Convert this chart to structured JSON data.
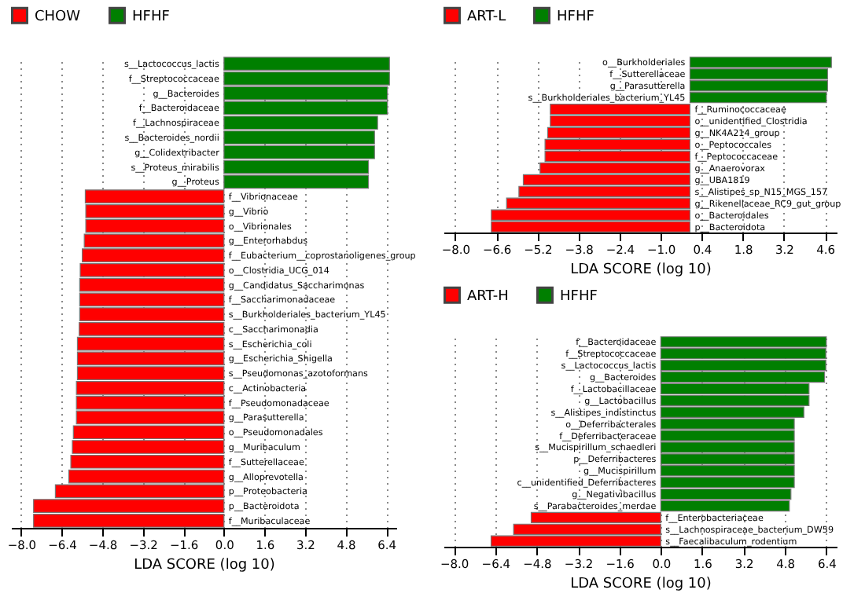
{
  "chart_data": [
    {
      "type": "bar",
      "orientation": "horizontal",
      "xlabel": "LDA SCORE (log 10)",
      "legend": "top left",
      "grid": "x",
      "categories": [
        "s__Lactococcus_lactis",
        "f__Streptococcaceae",
        "g__Bacteroides",
        "f__Bacteroidaceae",
        "f__Lachnospiraceae",
        "s__Bacteroides_nordii",
        "g__Colidextribacter",
        "s__Proteus_mirabilis",
        "g__Proteus",
        "f__Vibrionaceae",
        "g__Vibrio",
        "o__Vibrionales",
        "g__Enterorhabdus",
        "f__Eubacterium__coprostanoligenes_group",
        "o__Clostridia_UCG_014",
        "g__Candidatus_Saccharimonas",
        "f__Saccharimonadaceae",
        "s__Burkholderiales_bacterium_YL45",
        "c__Saccharimonadia",
        "s__Escherichia_coli",
        "g__Escherichia_Shigella",
        "s__Pseudomonas_azotoformans",
        "c__Actinobacteria",
        "f__Pseudomonadaceae",
        "g__Parasutterella",
        "o__Pseudomonadales",
        "g__Muribaculum",
        "f__Sutterellaceae",
        "g__Alloprevotella",
        "p__Proteobacteria",
        "p__Bacteroidota",
        "f__Muribaculaceae"
      ],
      "series": [
        {
          "name": "CHOW",
          "color": "#ff0000",
          "values": [
            null,
            null,
            null,
            null,
            null,
            null,
            null,
            null,
            null,
            -5.47,
            -5.45,
            -5.45,
            -5.51,
            -5.59,
            -5.67,
            -5.69,
            -5.69,
            -5.69,
            -5.71,
            -5.78,
            -5.78,
            -5.78,
            -5.82,
            -5.82,
            -5.82,
            -5.94,
            -5.98,
            -6.04,
            -6.12,
            -6.65,
            -7.51,
            -7.51
          ]
        },
        {
          "name": "HFHF",
          "color": "#007f00",
          "values": [
            6.53,
            6.53,
            6.45,
            6.45,
            6.06,
            5.94,
            5.94,
            5.7,
            5.7,
            null,
            null,
            null,
            null,
            null,
            null,
            null,
            null,
            null,
            null,
            null,
            null,
            null,
            null,
            null,
            null,
            null,
            null,
            null,
            null,
            null,
            null,
            null
          ]
        }
      ],
      "xlim": [
        -8.4,
        6.8
      ],
      "xticks": [
        {
          "value": -8,
          "label": "−8.0"
        },
        {
          "value": -6.4,
          "label": "−6.4"
        },
        {
          "value": -4.8,
          "label": "−4.8"
        },
        {
          "value": -3.2,
          "label": "−3.2"
        },
        {
          "value": -1.6,
          "label": "−1.6"
        },
        {
          "value": 0,
          "label": "0.0"
        },
        {
          "value": 1.6,
          "label": "1.6"
        },
        {
          "value": 3.2,
          "label": "3.2"
        },
        {
          "value": 4.8,
          "label": "4.8"
        },
        {
          "value": 6.4,
          "label": "6.4"
        }
      ]
    },
    {
      "type": "bar",
      "orientation": "horizontal",
      "xlabel": "LDA SCORE (log 10)",
      "legend": "top left",
      "grid": "x",
      "categories": [
        "o__Burkholderiales",
        "f__Sutterellaceae",
        "g__Parasutterella",
        "s__Burkholderiales_bacterium_YL45",
        "f__Ruminococcaceae",
        "o__unidentified_Clostridia",
        "g__NK4A214_group",
        "o__Peptococcales",
        "f__Peptococcaceae",
        "g__Anaerovorax",
        "g__UBA1819",
        "s__Alistipes_sp_N15_MGS_157",
        "g__Rikenellaceae_RC9_gut_group",
        "o__Bacteroidales",
        "p__Bacteroidota"
      ],
      "series": [
        {
          "name": "ART-L",
          "color": "#ff0000",
          "values": [
            null,
            null,
            null,
            null,
            -4.76,
            -4.76,
            -4.85,
            -4.94,
            -4.94,
            -5.11,
            -5.68,
            -5.83,
            -6.25,
            -6.77,
            -6.77
          ]
        },
        {
          "name": "HFHF",
          "color": "#007f00",
          "values": [
            4.82,
            4.69,
            4.69,
            4.65,
            null,
            null,
            null,
            null,
            null,
            null,
            null,
            null,
            null,
            null,
            null
          ]
        }
      ],
      "xlim": [
        -8.4,
        5.0
      ],
      "xticks": [
        {
          "value": -8,
          "label": "−8.0"
        },
        {
          "value": -6.6,
          "label": "−6.6"
        },
        {
          "value": -5.2,
          "label": "−5.2"
        },
        {
          "value": -3.8,
          "label": "−3.8"
        },
        {
          "value": -2.4,
          "label": "−2.4"
        },
        {
          "value": -1,
          "label": "−1.0"
        },
        0.4,
        1.8,
        3.2,
        4.6
      ]
    },
    {
      "type": "bar",
      "orientation": "horizontal",
      "xlabel": "LDA SCORE (log 10)",
      "legend": "top left",
      "grid": "x",
      "categories": [
        "f__Bacteroidaceae",
        "f__Streptococcaceae",
        "s__Lactococcus_lactis",
        "g__Bacteroides",
        "f__Lactobacillaceae",
        "g__Lactobacillus",
        "s__Alistipes_indistinctus",
        "o__Deferribacterales",
        "f__Deferribacteraceae",
        "s__Mucispirillum_schaedleri",
        "p__Deferribacteres",
        "g__Mucispirillum",
        "c__unidentified_Deferribacteres",
        "g__Negativibacillus",
        "s__Parabacteroides_merdae",
        "f__Enterobacteriaceae",
        "s__Lachnospiraceae_bacterium_DW59",
        "s__Faecalibaculum_rodentium"
      ],
      "series": [
        {
          "name": "ART-H",
          "color": "#ff0000",
          "values": [
            null,
            null,
            null,
            null,
            null,
            null,
            null,
            null,
            null,
            null,
            null,
            null,
            null,
            null,
            null,
            -5.01,
            -5.69,
            -6.56
          ]
        },
        {
          "name": "HFHF",
          "color": "#007f00",
          "values": [
            6.4,
            6.38,
            6.38,
            6.33,
            5.73,
            5.73,
            5.53,
            5.16,
            5.16,
            5.16,
            5.16,
            5.16,
            5.16,
            5.03,
            4.97,
            null,
            null,
            null
          ]
        }
      ],
      "xlim": [
        -8.4,
        6.8
      ],
      "xticks": [
        {
          "value": -8,
          "label": "−8.0"
        },
        {
          "value": -6.4,
          "label": "−6.4"
        },
        {
          "value": -4.8,
          "label": "−4.8"
        },
        {
          "value": -3.2,
          "label": "−3.2"
        },
        {
          "value": -1.6,
          "label": "−1.6"
        },
        {
          "value": 0,
          "label": "0.0"
        },
        {
          "value": 1.6,
          "label": "1.6"
        },
        {
          "value": 3.2,
          "label": "3.2"
        },
        {
          "value": 4.8,
          "label": "4.8"
        },
        {
          "value": 6.4,
          "label": "6.4"
        }
      ]
    }
  ]
}
